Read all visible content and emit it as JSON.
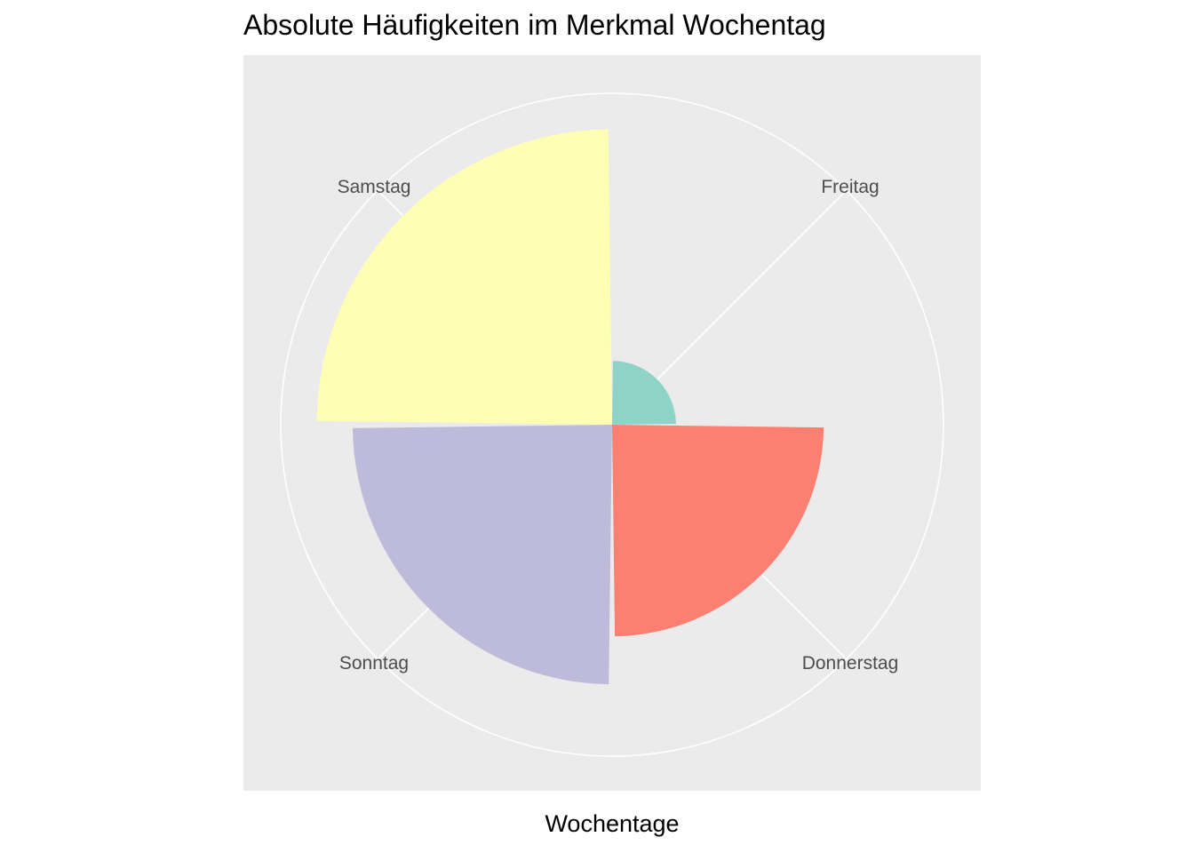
{
  "chart_data": {
    "type": "polar-bar",
    "title": "Absolute Häufigkeiten im Merkmal Wochentag",
    "xlabel": "Wochentage",
    "ylabel": "",
    "categories": [
      "Freitag",
      "Donnerstag",
      "Sonntag",
      "Samstag"
    ],
    "values": [
      1.6,
      5.3,
      6.5,
      7.4
    ],
    "colors": [
      "#8DD3C7",
      "#FB8072",
      "#BEBADA",
      "#FFFFB3"
    ],
    "rlim": [
      0,
      8.3
    ],
    "grid_circles": [
      8.3
    ],
    "panel_background": "#EBEBEB",
    "grid_color": "#FFFFFF",
    "legend": "none"
  }
}
